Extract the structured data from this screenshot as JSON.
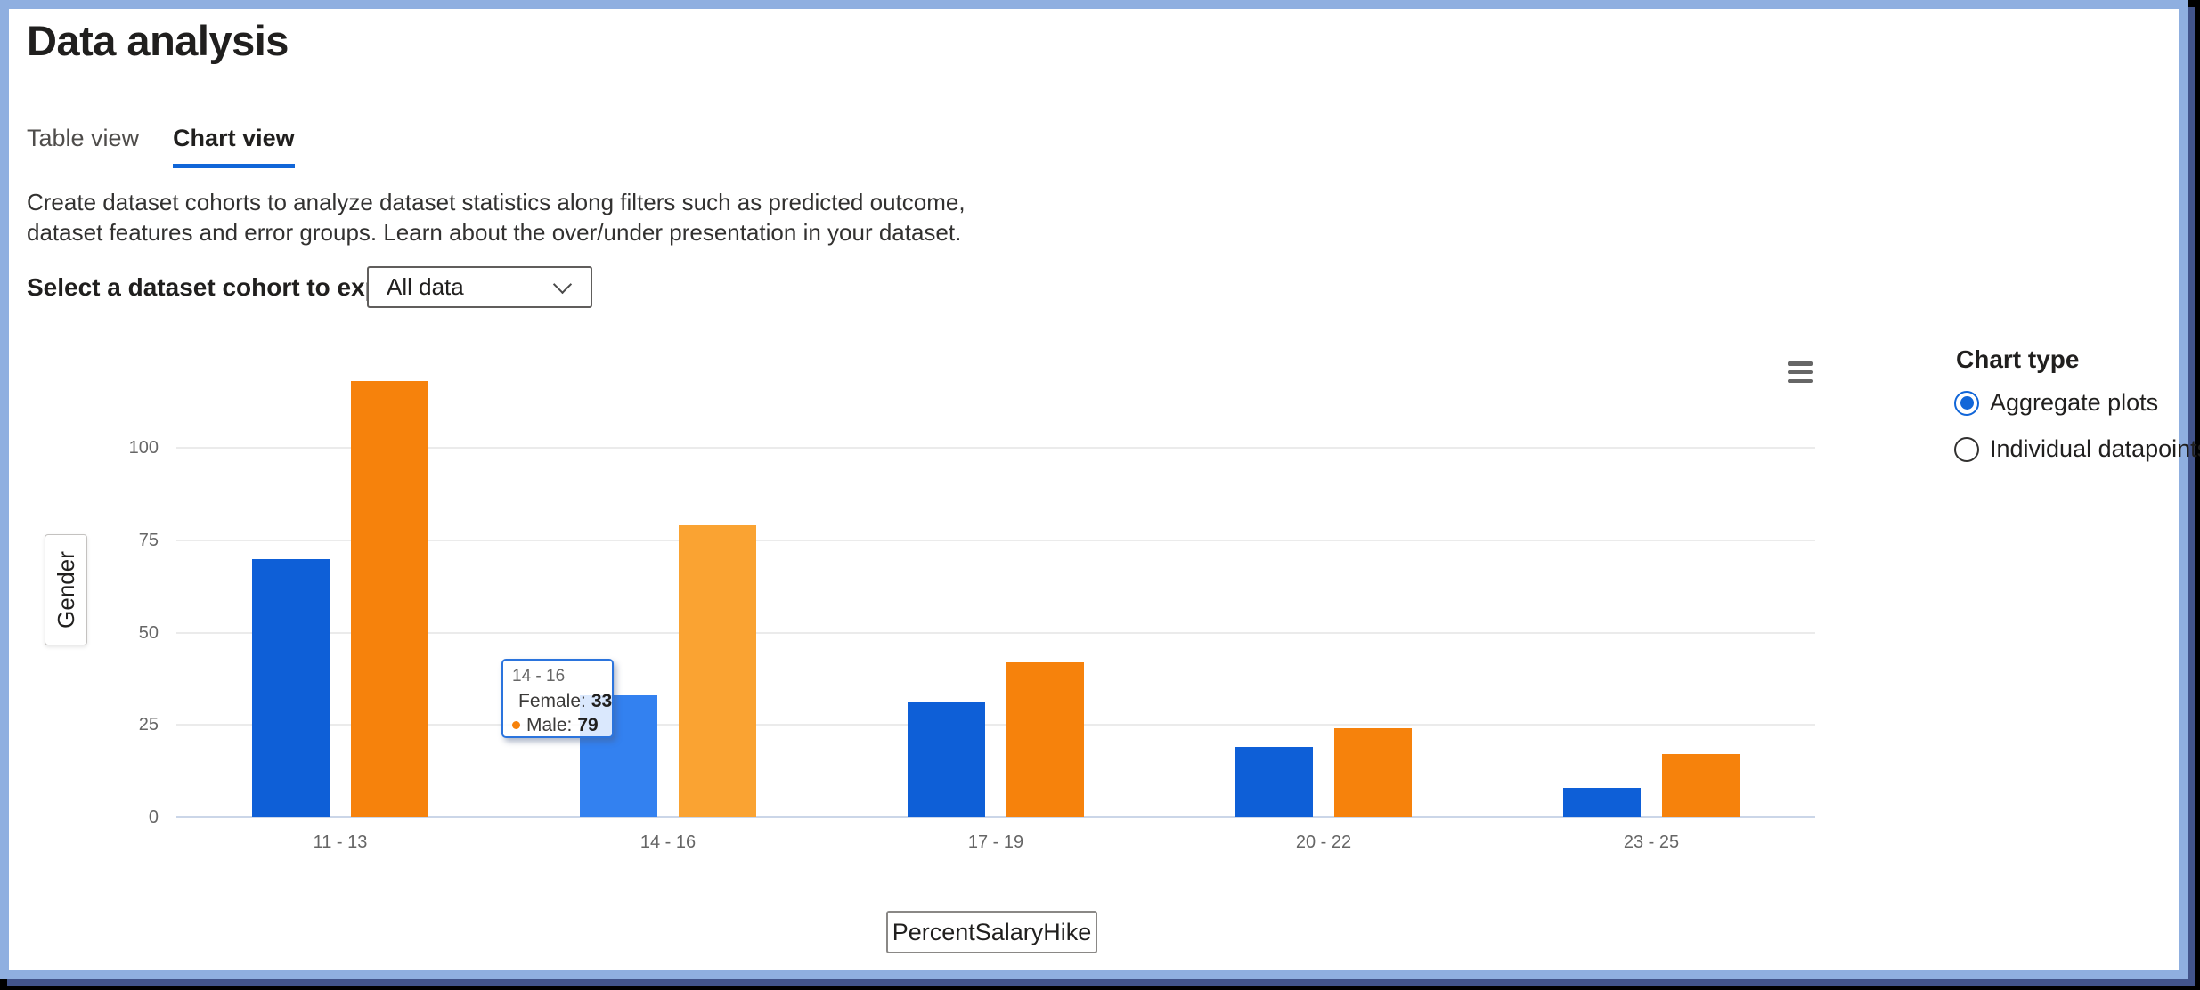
{
  "page": {
    "title": "Data analysis"
  },
  "tabs": [
    {
      "label": "Table view",
      "active": false
    },
    {
      "label": "Chart view",
      "active": true
    }
  ],
  "description": "Create dataset cohorts to analyze dataset statistics along filters such as predicted outcome, dataset features and error groups. Learn about the over/under presentation in your dataset.",
  "cohort_selector": {
    "label": "Select a dataset cohort to explore",
    "value": "All data"
  },
  "chart_type_panel": {
    "title": "Chart type",
    "options": [
      {
        "label": "Aggregate plots",
        "selected": true
      },
      {
        "label": "Individual datapoints",
        "selected": false
      }
    ]
  },
  "tooltip": {
    "header": "14 - 16",
    "rows": [
      {
        "label": "Female:",
        "value": "33",
        "color": "#0E5FD7"
      },
      {
        "label": "Male:",
        "value": "79",
        "color": "#F6820C"
      }
    ]
  },
  "chart_data": {
    "type": "bar",
    "title": "",
    "xlabel": "PercentSalaryHike",
    "ylabel": "Gender",
    "categories": [
      "11 - 13",
      "14 - 16",
      "17 - 19",
      "20 - 22",
      "23 - 25"
    ],
    "series": [
      {
        "name": "Female",
        "color": "#0E5FD7",
        "hover_color": "#3381F0",
        "values": [
          70,
          33,
          31,
          19,
          8
        ]
      },
      {
        "name": "Male",
        "color": "#F6820C",
        "hover_color": "#FAA332",
        "values": [
          118,
          79,
          42,
          24,
          17
        ]
      }
    ],
    "hovered_category_index": 1,
    "hovered_values": {
      "Female": 33,
      "Male": 79
    },
    "yticks": [
      0,
      25,
      50,
      75,
      100
    ],
    "ylim": [
      0,
      125
    ],
    "grid": "horizontal",
    "legend": "none"
  },
  "colors": {
    "accent": "#1166D8",
    "tab_underline": "#1166D8",
    "frame_border": "#8FAFE0",
    "frame_shadow": "#42548B",
    "axis_text": "#666666",
    "zero_axis": "#CBD6E8"
  }
}
